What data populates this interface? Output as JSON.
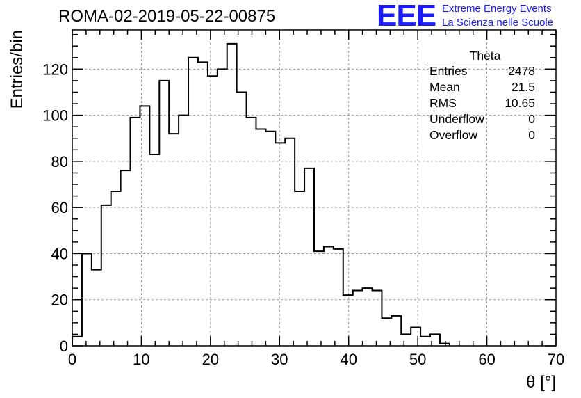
{
  "header": {
    "run_title": "ROMA-02-2019-05-22-00875",
    "logo_text": "EEE",
    "logo_line1": "Extreme Energy Events",
    "logo_line2": "La Scienza nelle Scuole",
    "logo_color": "#1a1aff"
  },
  "stats": {
    "title": "Theta",
    "rows": [
      {
        "label": "Entries",
        "value": "2478"
      },
      {
        "label": "Mean",
        "value": "21.5"
      },
      {
        "label": "RMS",
        "value": "10.65"
      },
      {
        "label": "Underflow",
        "value": "0"
      },
      {
        "label": "Overflow",
        "value": "0"
      }
    ]
  },
  "chart_data": {
    "type": "bar",
    "histogram": true,
    "xlabel": "θ [°]",
    "ylabel": "Entries/bin",
    "xlim": [
      0,
      70
    ],
    "ylim": [
      0,
      137
    ],
    "bin_width": 1.4,
    "grid": true,
    "line_color": "#000000",
    "grid_color": "#999999",
    "x_ticks": [
      0,
      10,
      20,
      30,
      40,
      50,
      60,
      70
    ],
    "y_ticks": [
      0,
      20,
      40,
      60,
      80,
      100,
      120
    ],
    "bin_edges": [
      0,
      1.4,
      2.8,
      4.2,
      5.6,
      7.0,
      8.4,
      9.8,
      11.2,
      12.6,
      14.0,
      15.4,
      16.8,
      18.2,
      19.6,
      21.0,
      22.4,
      23.8,
      25.2,
      26.6,
      28.0,
      29.4,
      30.8,
      32.2,
      33.6,
      35.0,
      36.4,
      37.8,
      39.2,
      40.6,
      42.0,
      43.4,
      44.8,
      46.2,
      47.6,
      49.0,
      50.4,
      51.8,
      53.2,
      54.6
    ],
    "values": [
      4,
      40,
      33,
      61,
      67,
      76,
      99,
      104,
      83,
      115,
      92,
      100,
      125,
      123,
      117,
      120,
      131,
      110,
      99,
      94,
      93,
      88,
      90,
      67,
      77,
      41,
      43,
      42,
      22,
      24,
      25,
      24,
      12,
      13,
      5,
      8,
      4,
      5,
      1
    ]
  }
}
